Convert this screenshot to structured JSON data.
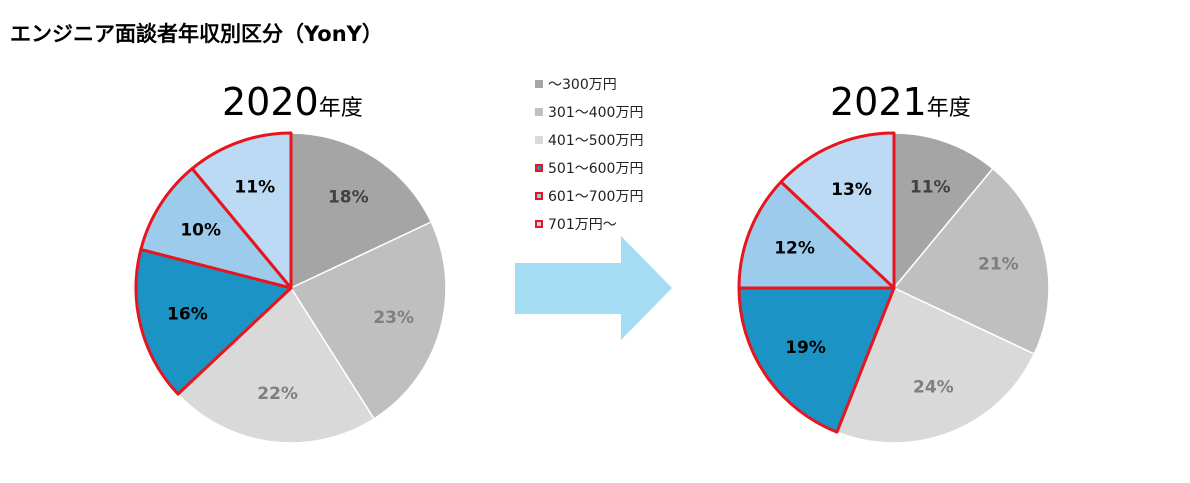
{
  "title": "エンジニア面談者年収別区分（YonY）",
  "legend": {
    "items": [
      {
        "label": "～300万円",
        "color": "#a5a5a5",
        "outlined": false
      },
      {
        "label": "301～400万円",
        "color": "#bfbfbf",
        "outlined": false
      },
      {
        "label": "401～500万円",
        "color": "#d9d9d9",
        "outlined": false
      },
      {
        "label": "501～600万円",
        "color": "#1b93c4",
        "outlined": true
      },
      {
        "label": "601～700万円",
        "color": "#9dcbec",
        "outlined": true
      },
      {
        "label": "701万円～",
        "color": "#bcdaf3",
        "outlined": true
      }
    ]
  },
  "colors": {
    "outline": "#e8141e",
    "arrow": "#a4dcf3",
    "label_dark": "#000000",
    "label_mid": "#404040",
    "label_light": "#7f7f7f"
  },
  "chart_data": [
    {
      "type": "pie",
      "title_num": "2020",
      "title_suffix": "年度",
      "categories": [
        "～300万円",
        "301～400万円",
        "401～500万円",
        "501～600万円",
        "601～700万円",
        "701万円～"
      ],
      "values": [
        18,
        23,
        22,
        16,
        10,
        11
      ],
      "labels": [
        "18%",
        "23%",
        "22%",
        "16%",
        "10%",
        "11%"
      ]
    },
    {
      "type": "pie",
      "title_num": "2021",
      "title_suffix": "年度",
      "categories": [
        "～300万円",
        "301～400万円",
        "401～500万円",
        "501～600万円",
        "601～700万円",
        "701万円～"
      ],
      "values": [
        11,
        21,
        24,
        19,
        12,
        13
      ],
      "labels": [
        "11%",
        "21%",
        "24%",
        "19%",
        "12%",
        "13%"
      ]
    }
  ]
}
